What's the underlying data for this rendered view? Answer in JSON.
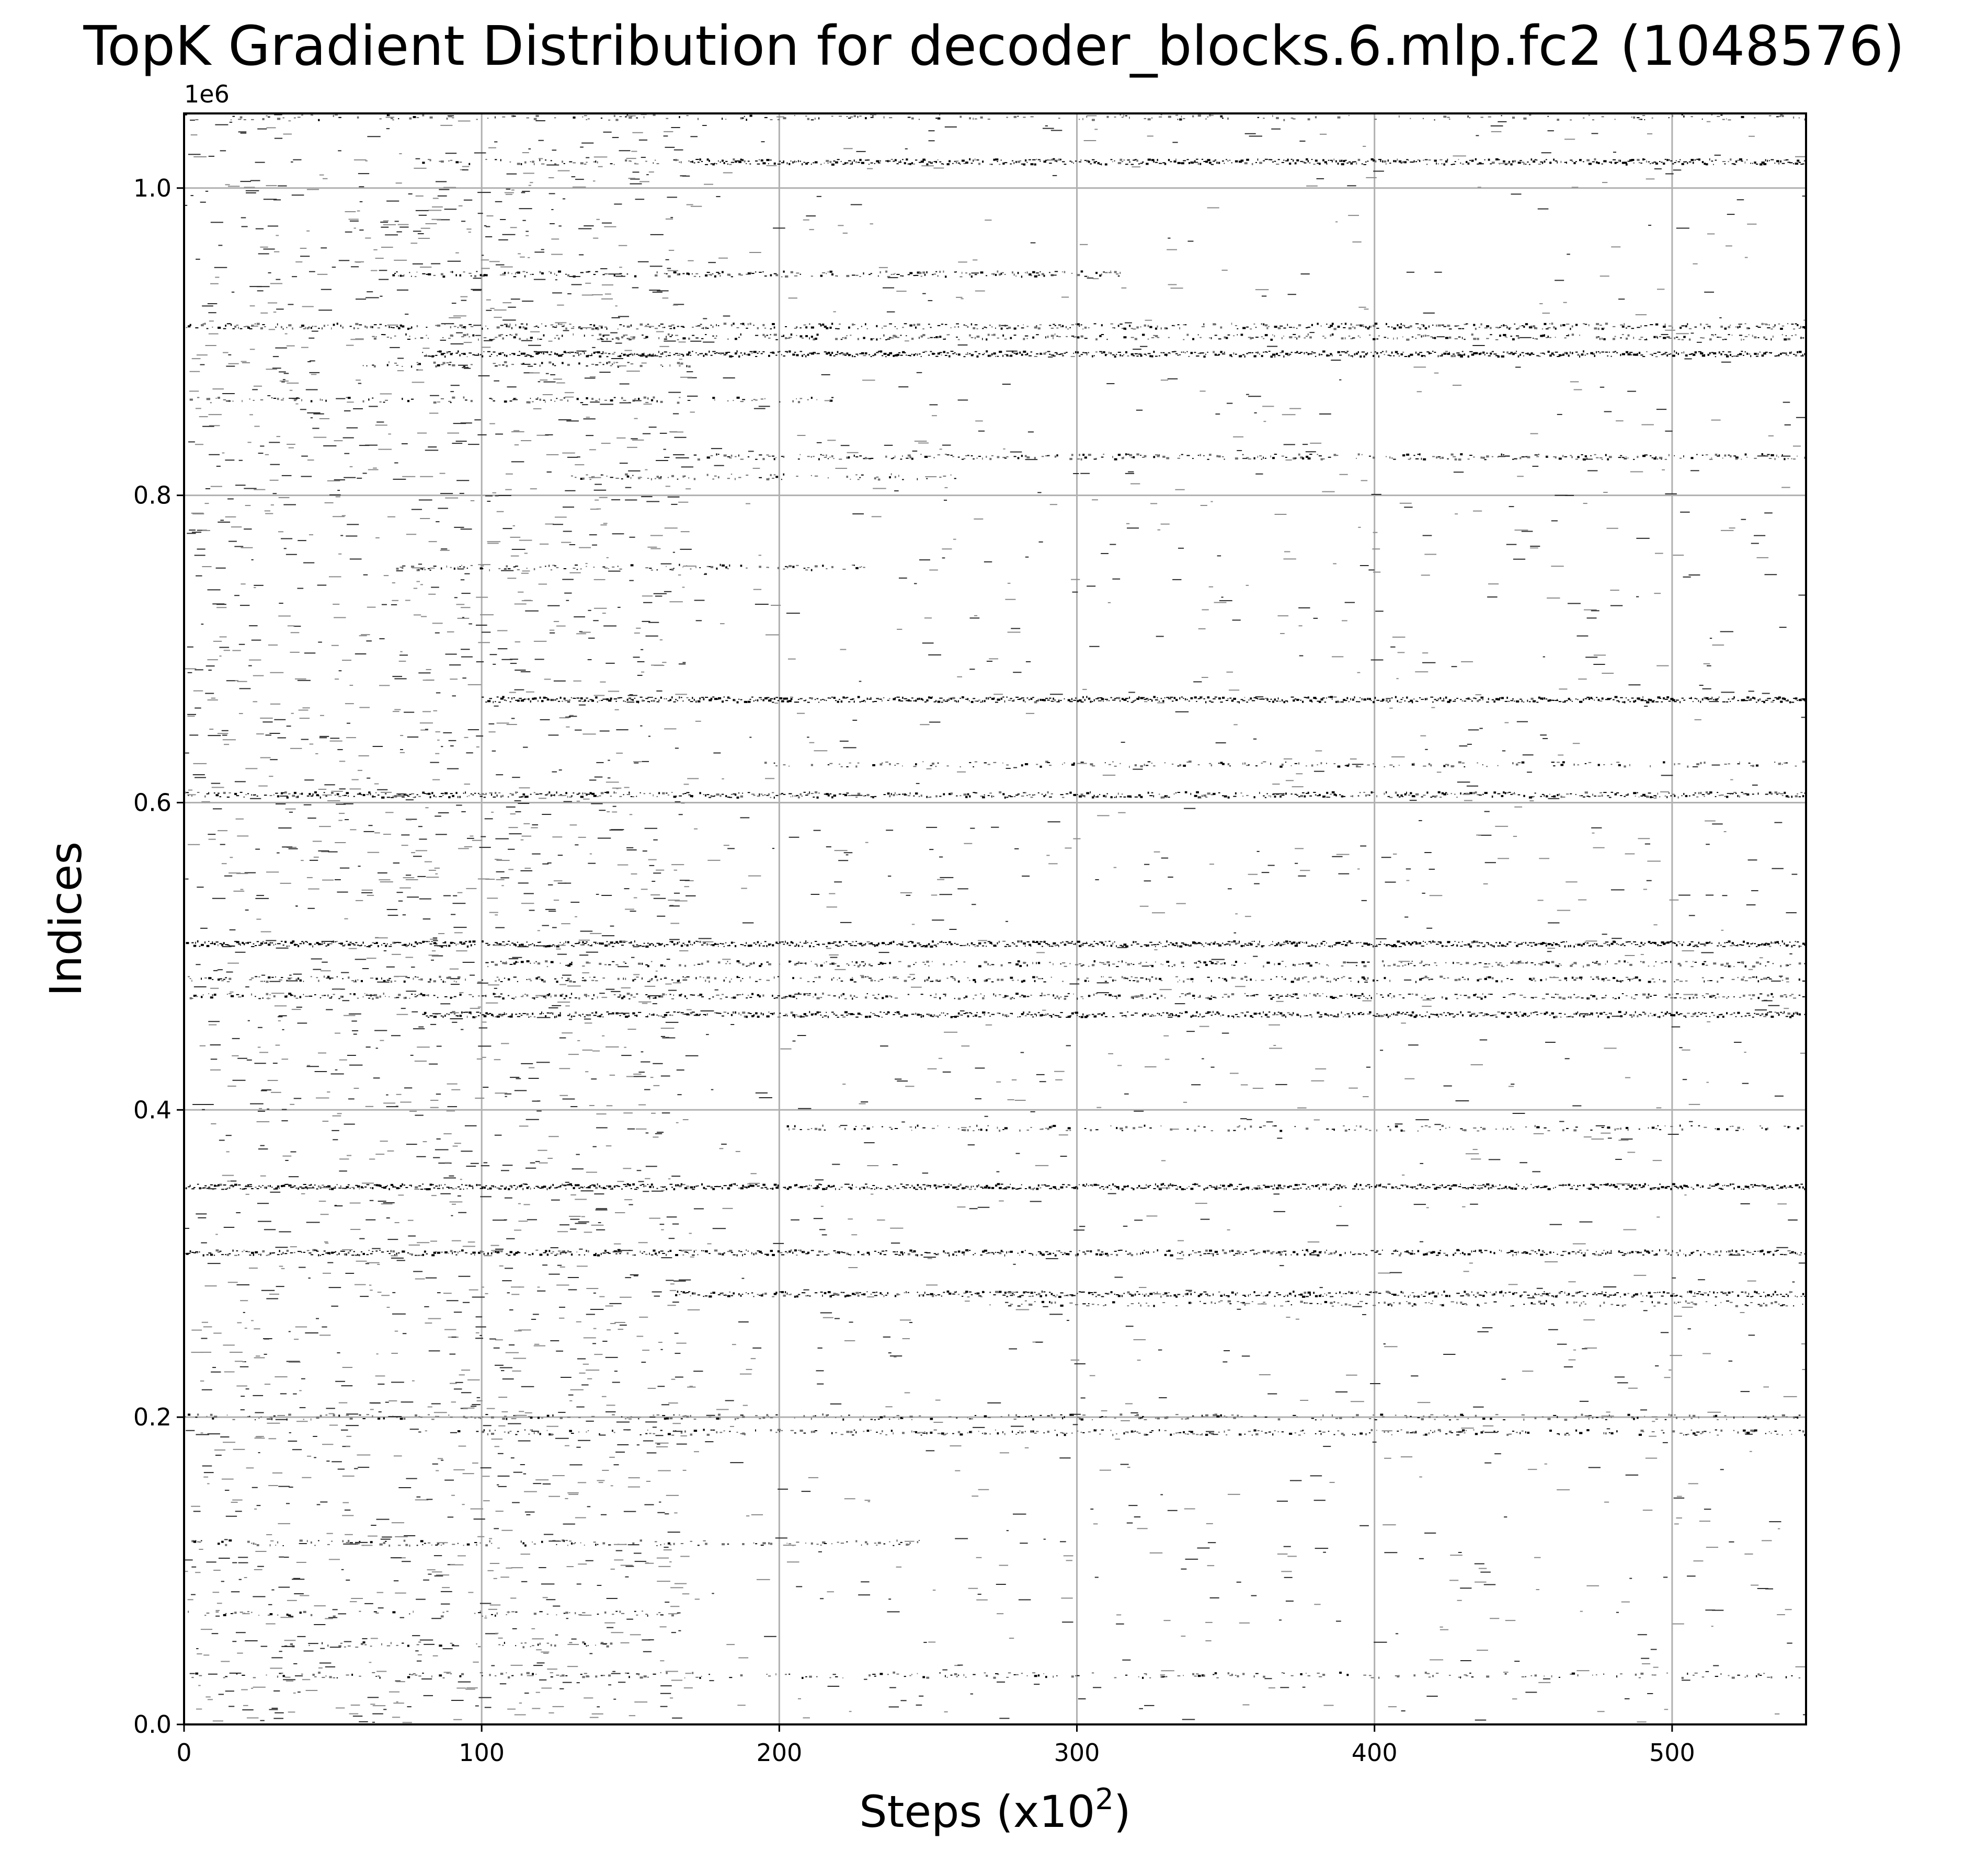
{
  "chart_data": {
    "type": "scatter",
    "title": "TopK Gradient Distribution for decoder_blocks.6.mlp.fc2 (1048576)",
    "xlabel_main": "Steps (x10",
    "xlabel_sup": "2",
    "xlabel_close": ")",
    "ylabel": "Indices",
    "y_offset_label": "1e6",
    "xlim": [
      0,
      545
    ],
    "ylim": [
      0,
      1048576
    ],
    "grid": true,
    "legend": "none",
    "marker_color": "#000000",
    "grid_color": "#b0b0b0",
    "x_ticks": [
      {
        "value": 0,
        "label": "0"
      },
      {
        "value": 100,
        "label": "100"
      },
      {
        "value": 200,
        "label": "200"
      },
      {
        "value": 300,
        "label": "300"
      },
      {
        "value": 400,
        "label": "400"
      },
      {
        "value": 500,
        "label": "500"
      }
    ],
    "y_ticks": [
      {
        "value": 0,
        "label": "0.0"
      },
      {
        "value": 200000,
        "label": "0.2"
      },
      {
        "value": 400000,
        "label": "0.4"
      },
      {
        "value": 600000,
        "label": "0.6"
      },
      {
        "value": 800000,
        "label": "0.8"
      },
      {
        "value": 1000000,
        "label": "1.0"
      }
    ],
    "bands": [
      {
        "y": 1017000,
        "x_start": 170,
        "x_end": 545,
        "density": 0.85
      },
      {
        "y": 1017000,
        "x_start": 80,
        "x_end": 170,
        "density": 0.35
      },
      {
        "y": 1046000,
        "x_start": 0,
        "x_end": 545,
        "density": 0.25
      },
      {
        "y": 944000,
        "x_start": 70,
        "x_end": 315,
        "density": 0.55
      },
      {
        "y": 910000,
        "x_start": 0,
        "x_end": 545,
        "density": 0.55
      },
      {
        "y": 903000,
        "x_start": 60,
        "x_end": 545,
        "density": 0.45
      },
      {
        "y": 892000,
        "x_start": 80,
        "x_end": 545,
        "density": 0.9
      },
      {
        "y": 885000,
        "x_start": 60,
        "x_end": 170,
        "density": 0.4
      },
      {
        "y": 862000,
        "x_start": 0,
        "x_end": 220,
        "density": 0.3
      },
      {
        "y": 825000,
        "x_start": 170,
        "x_end": 545,
        "density": 0.5
      },
      {
        "y": 812000,
        "x_start": 130,
        "x_end": 260,
        "density": 0.35
      },
      {
        "y": 753000,
        "x_start": 70,
        "x_end": 230,
        "density": 0.4
      },
      {
        "y": 667000,
        "x_start": 100,
        "x_end": 545,
        "density": 0.95
      },
      {
        "y": 625000,
        "x_start": 190,
        "x_end": 545,
        "density": 0.35
      },
      {
        "y": 605000,
        "x_start": 0,
        "x_end": 545,
        "density": 0.7
      },
      {
        "y": 508000,
        "x_start": 0,
        "x_end": 545,
        "density": 0.95
      },
      {
        "y": 495000,
        "x_start": 100,
        "x_end": 545,
        "density": 0.45
      },
      {
        "y": 485000,
        "x_start": 0,
        "x_end": 545,
        "density": 0.45
      },
      {
        "y": 474000,
        "x_start": 0,
        "x_end": 545,
        "density": 0.55
      },
      {
        "y": 462000,
        "x_start": 80,
        "x_end": 545,
        "density": 0.85
      },
      {
        "y": 388000,
        "x_start": 200,
        "x_end": 545,
        "density": 0.35
      },
      {
        "y": 350000,
        "x_start": 0,
        "x_end": 545,
        "density": 0.9
      },
      {
        "y": 307000,
        "x_start": 0,
        "x_end": 545,
        "density": 0.75
      },
      {
        "y": 280000,
        "x_start": 165,
        "x_end": 545,
        "density": 0.75
      },
      {
        "y": 274000,
        "x_start": 270,
        "x_end": 545,
        "density": 0.35
      },
      {
        "y": 200000,
        "x_start": 0,
        "x_end": 545,
        "density": 0.35
      },
      {
        "y": 190000,
        "x_start": 90,
        "x_end": 545,
        "density": 0.45
      },
      {
        "y": 118000,
        "x_start": 0,
        "x_end": 250,
        "density": 0.35
      },
      {
        "y": 72000,
        "x_start": 0,
        "x_end": 170,
        "density": 0.3
      },
      {
        "y": 52000,
        "x_start": 30,
        "x_end": 150,
        "density": 0.3
      },
      {
        "y": 32000,
        "x_start": 0,
        "x_end": 545,
        "density": 0.3
      }
    ],
    "scatter_regions": [
      {
        "x_start": 0,
        "x_end": 170,
        "y_start": 0,
        "y_end": 1048576,
        "count": 2600
      },
      {
        "x_start": 170,
        "x_end": 545,
        "y_start": 0,
        "y_end": 1048576,
        "count": 1400
      }
    ]
  }
}
